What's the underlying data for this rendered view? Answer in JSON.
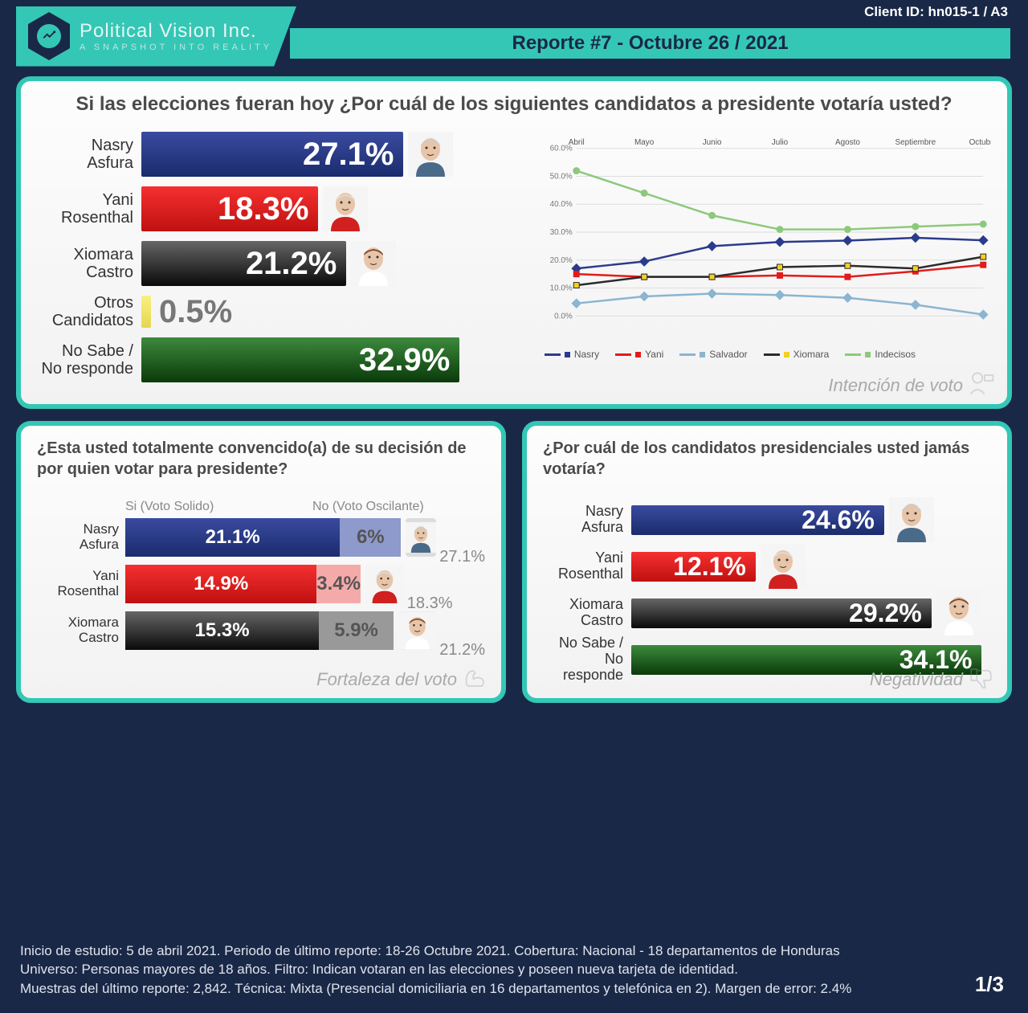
{
  "header": {
    "company_name": "Political Vision Inc.",
    "company_tag": "A SNAPSHOT INTO REALITY",
    "client_id": "Client ID: hn015-1 / A3",
    "report_title": "Reporte #7 - Octubre 26 / 2021"
  },
  "colors": {
    "bg": "#1a2847",
    "accent": "#34c7b5",
    "nasry": "#1a2b6d",
    "nasry_grad": "linear-gradient(#2a3b8d,#1a2b6d)",
    "yani": "#e31b1b",
    "yani_grad": "linear-gradient(#f03030,#c01515)",
    "xiomara": "#2b2b2b",
    "xiomara_grad": "linear-gradient(#555,#111)",
    "otros": "#f5e663",
    "nosabe_grad": "linear-gradient(#2d7a2d,#0a3a0a)",
    "salvador_line": "#8bb5d1",
    "indecisos_line": "#8cc97a"
  },
  "intencion": {
    "title": "Si las elecciones fueran hoy ¿Por cuál de los siguientes candidatos a presidente votaría usted?",
    "section": "Intención de voto",
    "max": 40,
    "rows": [
      {
        "label": "Nasry\nAsfura",
        "value": 27.1,
        "color": "nasry",
        "avatar": "m1"
      },
      {
        "label": "Yani\nRosenthal",
        "value": 18.3,
        "color": "yani",
        "avatar": "m2"
      },
      {
        "label": "Xiomara\nCastro",
        "value": 21.2,
        "color": "xiomara",
        "avatar": "f1"
      },
      {
        "label": "Otros\nCandidatos",
        "value": 0.5,
        "color": "otros",
        "text_out": true,
        "small": true
      },
      {
        "label": "No Sabe /\nNo responde",
        "value": 32.9,
        "color": "nosabe"
      }
    ],
    "trend": {
      "months": [
        "Abril",
        "Mayo",
        "Junio",
        "Julio",
        "Agosto",
        "Septiembre",
        "Octubre"
      ],
      "ymax": 60,
      "ystep": 10,
      "series": [
        {
          "name": "Nasry",
          "color": "#2a3b8d",
          "marker": "diamond",
          "data": [
            17,
            19.5,
            25,
            26.5,
            27,
            28,
            27.1
          ]
        },
        {
          "name": "Yani",
          "color": "#e31b1b",
          "marker": "square",
          "data": [
            15,
            14,
            14,
            14.5,
            14,
            16,
            18.3
          ]
        },
        {
          "name": "Salvador",
          "color": "#8bb5d1",
          "marker": "diamond",
          "data": [
            4.5,
            7,
            8,
            7.5,
            6.5,
            4,
            0.5
          ]
        },
        {
          "name": "Xiomara",
          "color": "#2b2b2b",
          "marker": "square",
          "yellow_marker": true,
          "data": [
            11,
            14,
            14,
            17.5,
            18,
            17,
            21.2
          ]
        },
        {
          "name": "Indecisos",
          "color": "#8cc97a",
          "marker": "circle",
          "data": [
            52,
            44,
            36,
            31,
            31,
            32,
            32.9
          ]
        }
      ]
    }
  },
  "fortaleza": {
    "title": "¿Esta usted totalmente convencido(a) de su decisión de por quien votar para presidente?",
    "section": "Fortaleza del voto",
    "hdr_si": "Si (Voto Solido)",
    "hdr_no": "No (Voto Oscilante)",
    "max": 28,
    "rows": [
      {
        "label": "Nasry\nAsfura",
        "solid": 21.1,
        "osc": 6.0,
        "total": 27.1,
        "color": "nasry",
        "light": "#8e9acb",
        "avatar": "m1"
      },
      {
        "label": "Yani\nRosenthal",
        "solid": 14.9,
        "osc": 3.4,
        "total": 18.3,
        "color": "yani",
        "light": "#f5aaaa",
        "avatar": "m2"
      },
      {
        "label": "Xiomara\nCastro",
        "solid": 15.3,
        "osc": 5.9,
        "total": 21.2,
        "color": "xiomara",
        "light": "#999",
        "avatar": "f1"
      }
    ]
  },
  "negatividad": {
    "title": "¿Por cuál de los candidatos presidenciales usted jamás votaría?",
    "section": "Negatividad",
    "max": 35,
    "rows": [
      {
        "label": "Nasry\nAsfura",
        "value": 24.6,
        "color": "nasry",
        "avatar": "m1"
      },
      {
        "label": "Yani\nRosenthal",
        "value": 12.1,
        "color": "yani",
        "avatar": "m2"
      },
      {
        "label": "Xiomara\nCastro",
        "value": 29.2,
        "color": "xiomara",
        "avatar": "f1"
      },
      {
        "label": "No Sabe /\nNo responde",
        "value": 34.1,
        "color": "nosabe"
      }
    ]
  },
  "footer": {
    "l1": "Inicio de estudio: 5 de abril 2021. Periodo de último reporte: 18-26 Octubre 2021. Cobertura: Nacional - 18 departamentos de Honduras",
    "l2": "Universo: Personas mayores de 18 años. Filtro: Indican votaran en las elecciones y poseen nueva tarjeta de identidad.",
    "l3": "Muestras del último reporte: 2,842. Técnica: Mixta (Presencial domiciliaria en 16 departamentos y telefónica en 2). Margen de error: 2.4%",
    "page": "1/3"
  }
}
